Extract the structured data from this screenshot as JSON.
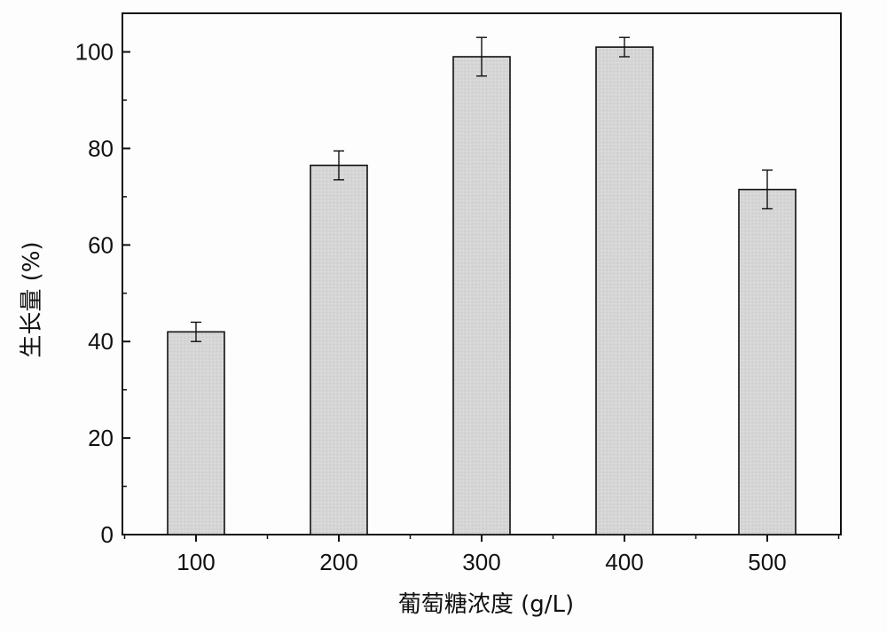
{
  "chart_data": {
    "type": "bar",
    "title": "",
    "xlabel": "葡萄糖浓度 (g/L)",
    "ylabel": "生长量 (%)",
    "categories": [
      "100",
      "200",
      "300",
      "400",
      "500"
    ],
    "values": [
      42,
      76.5,
      99,
      101,
      71.5
    ],
    "errors": [
      2,
      3,
      4,
      2,
      4
    ],
    "ylim": [
      0,
      108
    ],
    "yticks": [
      "0",
      "20",
      "40",
      "60",
      "80",
      "100"
    ],
    "grid": false,
    "bar_color": "#d6d6d6",
    "edge_color": "#111111"
  }
}
